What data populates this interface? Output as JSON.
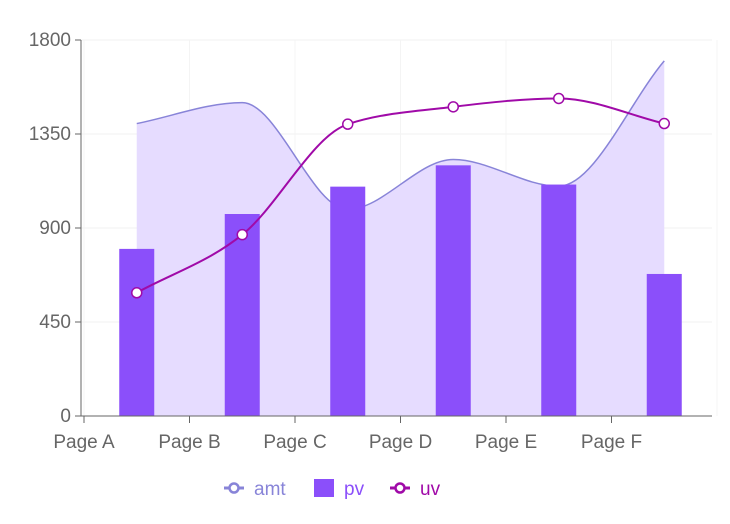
{
  "chart_data": {
    "type": "bar",
    "categories": [
      "Page A",
      "Page B",
      "Page C",
      "Page D",
      "Page E",
      "Page F"
    ],
    "ylim": [
      0,
      1800
    ],
    "yticks": [
      "0",
      "450",
      "900",
      "1350",
      "1800"
    ],
    "grid": true,
    "legend_position": "bottom",
    "series": [
      {
        "name": "amt",
        "type": "area",
        "color": "#8884d8",
        "fill": "#e6dcff",
        "values": [
          1400,
          1500,
          989,
          1228,
          1100,
          1700
        ]
      },
      {
        "name": "pv",
        "type": "bar",
        "color": "#8b4ffa",
        "values": [
          800,
          967,
          1098,
          1200,
          1108,
          680
        ]
      },
      {
        "name": "uv",
        "type": "line",
        "color": "#a00aa8",
        "values": [
          590,
          868,
          1397,
          1480,
          1520,
          1400
        ]
      }
    ]
  }
}
